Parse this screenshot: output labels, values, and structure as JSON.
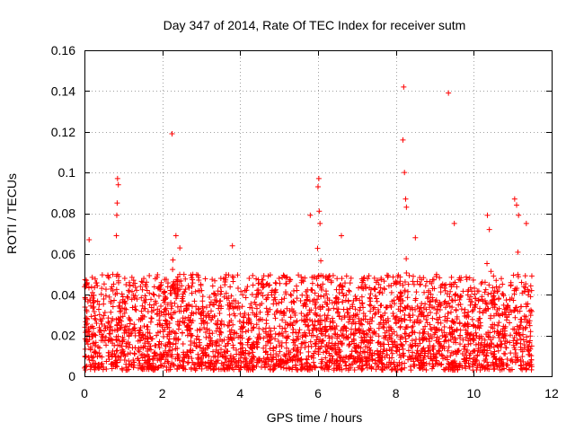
{
  "chart_data": {
    "type": "scatter",
    "title": "Day 347 of 2014, Rate Of TEC Index for receiver sutm",
    "xlabel": "GPS time / hours",
    "ylabel": "ROTI / TECUs",
    "xlim": [
      0,
      12
    ],
    "ylim": [
      0,
      0.16
    ],
    "xticks": [
      0,
      2,
      4,
      6,
      8,
      10,
      12
    ],
    "yticks": [
      0,
      0.02,
      0.04,
      0.06,
      0.08,
      0.1,
      0.12,
      0.14,
      0.16
    ],
    "xtick_labels": [
      "0",
      "2",
      "4",
      "6",
      "8",
      "10",
      "12"
    ],
    "ytick_labels": [
      "0",
      "0.02",
      "0.04",
      "0.06",
      "0.08",
      "0.1",
      "0.12",
      "0.14",
      "0.16"
    ],
    "grid": true,
    "marker": "+",
    "color": "#ff0000",
    "data_range_hours": [
      0,
      11.5
    ],
    "bulk_band": [
      0.003,
      0.05
    ],
    "notable_points": [
      {
        "x": 0.12,
        "y": 0.067
      },
      {
        "x": 0.85,
        "y": 0.097
      },
      {
        "x": 0.87,
        "y": 0.094
      },
      {
        "x": 0.84,
        "y": 0.085
      },
      {
        "x": 0.83,
        "y": 0.079
      },
      {
        "x": 0.82,
        "y": 0.069
      },
      {
        "x": 2.25,
        "y": 0.119
      },
      {
        "x": 2.35,
        "y": 0.069
      },
      {
        "x": 2.45,
        "y": 0.063
      },
      {
        "x": 3.8,
        "y": 0.064
      },
      {
        "x": 5.8,
        "y": 0.079
      },
      {
        "x": 6.02,
        "y": 0.097
      },
      {
        "x": 6.0,
        "y": 0.093
      },
      {
        "x": 6.03,
        "y": 0.081
      },
      {
        "x": 6.05,
        "y": 0.075
      },
      {
        "x": 6.6,
        "y": 0.069
      },
      {
        "x": 8.2,
        "y": 0.142
      },
      {
        "x": 8.18,
        "y": 0.116
      },
      {
        "x": 8.22,
        "y": 0.1
      },
      {
        "x": 8.25,
        "y": 0.087
      },
      {
        "x": 8.27,
        "y": 0.083
      },
      {
        "x": 8.5,
        "y": 0.068
      },
      {
        "x": 9.35,
        "y": 0.139
      },
      {
        "x": 9.5,
        "y": 0.075
      },
      {
        "x": 10.35,
        "y": 0.079
      },
      {
        "x": 10.4,
        "y": 0.072
      },
      {
        "x": 11.05,
        "y": 0.087
      },
      {
        "x": 11.1,
        "y": 0.084
      },
      {
        "x": 11.15,
        "y": 0.079
      },
      {
        "x": 11.35,
        "y": 0.075
      }
    ],
    "spike_regions": [
      {
        "center_hours": 0.85,
        "peak": 0.097
      },
      {
        "center_hours": 2.3,
        "peak": 0.119
      },
      {
        "center_hours": 6.02,
        "peak": 0.097
      },
      {
        "center_hours": 8.2,
        "peak": 0.142
      },
      {
        "center_hours": 9.35,
        "peak": 0.139
      },
      {
        "center_hours": 10.4,
        "peak": 0.079
      },
      {
        "center_hours": 11.1,
        "peak": 0.087
      }
    ]
  }
}
